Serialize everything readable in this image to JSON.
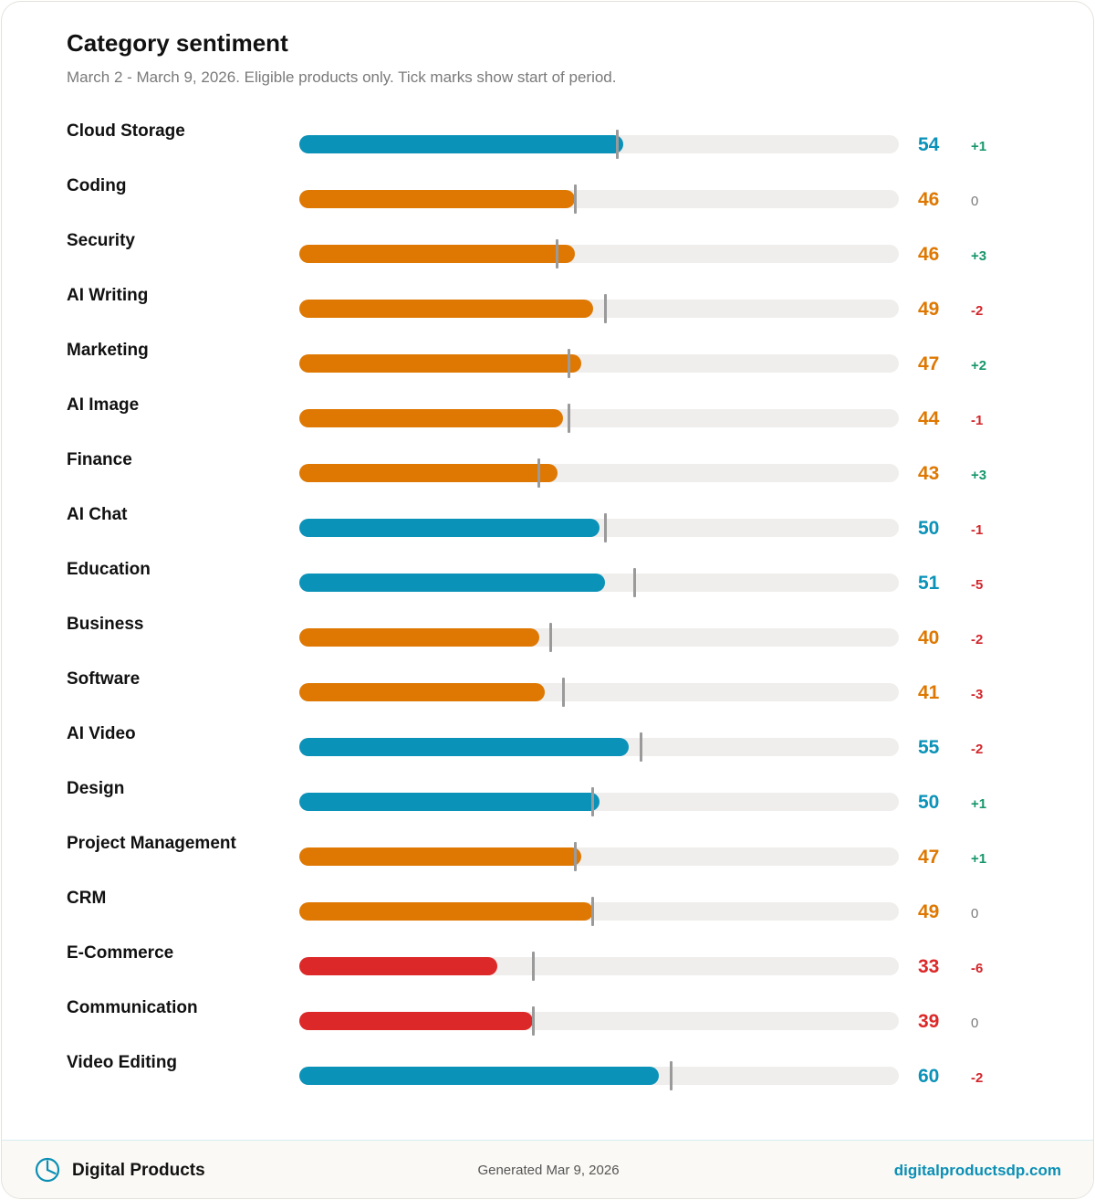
{
  "header": {
    "title": "Category sentiment",
    "subtitle": "March 2 - March 9, 2026. Eligible products only. Tick marks show start of period."
  },
  "colors": {
    "positive": "#0b92b8",
    "neutral": "#de7802",
    "negative": "#dc2828",
    "delta_up": "#16966a",
    "delta_down": "#d3262b",
    "delta_flat": "#7a7a7a",
    "track": "#efeeec",
    "tick": "#9a9a9a"
  },
  "chart_data": {
    "type": "bar",
    "orientation": "horizontal",
    "xlim": [
      0,
      100
    ],
    "categories": [
      "Cloud Storage",
      "Coding",
      "Security",
      "AI Writing",
      "Marketing",
      "AI Image",
      "Finance",
      "AI Chat",
      "Education",
      "Business",
      "Software",
      "AI Video",
      "Design",
      "Project Management",
      "CRM",
      "E-Commerce",
      "Communication",
      "Video Editing"
    ],
    "values": [
      54,
      46,
      46,
      49,
      47,
      44,
      43,
      50,
      51,
      40,
      41,
      55,
      50,
      47,
      49,
      33,
      39,
      60
    ],
    "start_values": [
      53,
      46,
      43,
      51,
      45,
      45,
      40,
      51,
      56,
      42,
      44,
      57,
      49,
      46,
      49,
      39,
      39,
      62
    ],
    "deltas": [
      "+1",
      "0",
      "+3",
      "-2",
      "+2",
      "-1",
      "+3",
      "-1",
      "-5",
      "-2",
      "-3",
      "-2",
      "+1",
      "+1",
      "0",
      "-6",
      "0",
      "-2"
    ],
    "status": [
      "positive",
      "neutral",
      "neutral",
      "neutral",
      "neutral",
      "neutral",
      "neutral",
      "positive",
      "positive",
      "neutral",
      "neutral",
      "positive",
      "positive",
      "neutral",
      "neutral",
      "negative",
      "negative",
      "positive"
    ]
  },
  "footer": {
    "brand": "Digital Products",
    "logo_icon": "pie-chart-icon",
    "generated": "Generated Mar 9, 2026",
    "site": "digitalproductsdp.com"
  }
}
